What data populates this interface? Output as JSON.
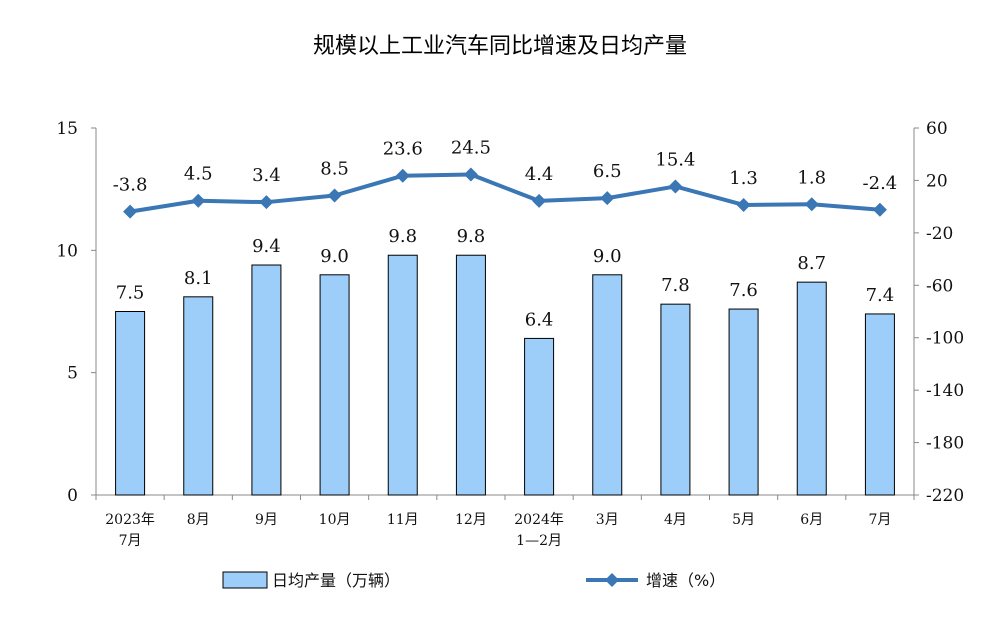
{
  "chart_data": {
    "type": "bar",
    "title": "规模以上工业汽车同比增速及日均产量",
    "categories": [
      [
        "2023年",
        "7月"
      ],
      [
        "8月"
      ],
      [
        "9月"
      ],
      [
        "10月"
      ],
      [
        "11月"
      ],
      [
        "12月"
      ],
      [
        "2024年",
        "1—2月"
      ],
      [
        "3月"
      ],
      [
        "4月"
      ],
      [
        "5月"
      ],
      [
        "6月"
      ],
      [
        "7月"
      ]
    ],
    "series": [
      {
        "name": "日均产量（万辆）",
        "type": "bar",
        "axis": "left",
        "values": [
          7.5,
          8.1,
          9.4,
          9.0,
          9.8,
          9.8,
          6.4,
          9.0,
          7.8,
          7.6,
          8.7,
          7.4
        ],
        "labels": [
          "7.5",
          "8.1",
          "9.4",
          "9.0",
          "9.8",
          "9.8",
          "6.4",
          "9.0",
          "7.8",
          "7.6",
          "8.7",
          "7.4"
        ],
        "color": "#9CCEF9"
      },
      {
        "name": "增速（%）",
        "type": "line",
        "axis": "right",
        "values": [
          -3.8,
          4.5,
          3.4,
          8.5,
          23.6,
          24.5,
          4.4,
          6.5,
          15.4,
          1.3,
          1.8,
          -2.4
        ],
        "labels": [
          "-3.8",
          "4.5",
          "3.4",
          "8.5",
          "23.6",
          "24.5",
          "4.4",
          "6.5",
          "15.4",
          "1.3",
          "1.8",
          "-2.4"
        ],
        "color": "#3B76B5"
      }
    ],
    "y_left": {
      "min": 0,
      "max": 15,
      "ticks": [
        "0",
        "5",
        "10",
        "15"
      ],
      "tick_values": [
        0,
        5,
        10,
        15
      ]
    },
    "y_right": {
      "min": -220,
      "max": 60,
      "ticks": [
        "-220",
        "-180",
        "-140",
        "-100",
        "-60",
        "-20",
        "20",
        "60"
      ],
      "tick_values": [
        -220,
        -180,
        -140,
        -100,
        -60,
        -20,
        20,
        60
      ]
    },
    "grid": false,
    "legend_position": "bottom"
  }
}
